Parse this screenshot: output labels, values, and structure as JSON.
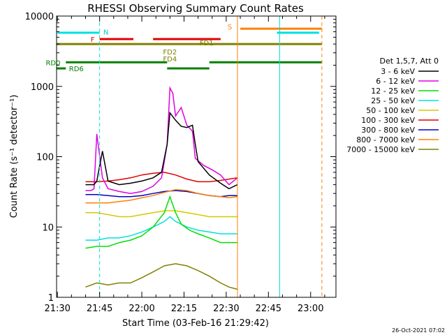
{
  "chart_data": {
    "type": "line",
    "title": "RHESSI Observing Summary Count Rates",
    "xlabel": "Start Time (03-Feb-16 21:29:42)",
    "ylabel": "Count Rate (s⁻¹ detector⁻¹)",
    "y_scale": "log",
    "ylim": [
      1,
      10000
    ],
    "xlim": [
      "21:29:42",
      "23:09:00"
    ],
    "x_ticks": [
      "21:30",
      "21:45",
      "22:00",
      "22:15",
      "22:30",
      "22:45",
      "23:00"
    ],
    "y_ticks": [
      "1",
      "10",
      "100",
      "1000",
      "10000"
    ],
    "footer": "26-Oct-2021 07:02",
    "legend": {
      "title": "Det 1,5,7, Att 0",
      "placement": "right",
      "entries": [
        {
          "label": "3 - 6 keV",
          "color": "#000000"
        },
        {
          "label": "6 - 12 keV",
          "color": "#e000e0"
        },
        {
          "label": "12 - 25 keV",
          "color": "#00e000"
        },
        {
          "label": "25 - 50 keV",
          "color": "#00e0e0"
        },
        {
          "label": "50 - 100 keV",
          "color": "#d8c800"
        },
        {
          "label": "100 - 300 keV",
          "color": "#e00000"
        },
        {
          "label": "300 - 800 keV",
          "color": "#0000c8"
        },
        {
          "label": "800 - 7000 keV",
          "color": "#ff8000"
        },
        {
          "label": "7000 - 15000 keV",
          "color": "#808000"
        }
      ]
    },
    "flag_bars": [
      {
        "label": "N",
        "color": "#00e0e0",
        "label_color": "#00c8c8",
        "y": 5800,
        "segments": [
          [
            "21:30",
            "21:45"
          ],
          [
            "22:48",
            "23:03"
          ]
        ]
      },
      {
        "label": "F",
        "color": "#e00000",
        "label_color": "#e00000",
        "y": 4700,
        "segments": [
          [
            "21:45",
            "21:57"
          ],
          [
            "22:04",
            "22:28"
          ]
        ]
      },
      {
        "label": "S",
        "color": "#ff8000",
        "label_color": "#ff8000",
        "y": 6600,
        "segments": [
          [
            "22:35",
            "23:04"
          ]
        ]
      },
      {
        "label": "FD1",
        "color": "#808000",
        "label_color": "#808000",
        "y": 4000,
        "segments": [
          [
            "21:29:42",
            "23:04"
          ]
        ]
      },
      {
        "label": "FD2",
        "color": "#808000",
        "label_color": "#808000",
        "y": 3100,
        "segments": []
      },
      {
        "label": "FD4",
        "color": "#008000",
        "label_color": "#808000",
        "y": 1800,
        "segments": [
          [
            "22:09",
            "22:24"
          ]
        ]
      },
      {
        "label": "RD0",
        "color": "#008000",
        "label_color": "#008000",
        "y": 2200,
        "segments": [
          [
            "21:33",
            "22:09"
          ],
          [
            "22:24",
            "23:04"
          ]
        ]
      },
      {
        "label": "RD6",
        "color": "#008000",
        "label_color": "#008000",
        "y": 1800,
        "segments": [
          [
            "21:29:42",
            "21:33"
          ]
        ]
      }
    ],
    "vlines": [
      {
        "x": "21:29:42",
        "color": "#00e0e0",
        "style": "solid"
      },
      {
        "x": "21:45",
        "color": "#00e0e0",
        "style": "dashed"
      },
      {
        "x": "22:34",
        "color": "#ff8000",
        "style": "solid"
      },
      {
        "x": "22:49",
        "color": "#00e0e0",
        "style": "solid"
      },
      {
        "x": "23:04",
        "color": "#ff8000",
        "style": "dashed"
      }
    ],
    "series": [
      {
        "name": "3 - 6 keV",
        "color": "#000000",
        "x": [
          "21:40",
          "21:43",
          "21:44",
          "21:46",
          "21:48",
          "21:52",
          "21:56",
          "22:00",
          "22:04",
          "22:07",
          "22:09",
          "22:10",
          "22:12",
          "22:14",
          "22:16",
          "22:18",
          "22:19",
          "22:20",
          "22:24",
          "22:28",
          "22:31",
          "22:34"
        ],
        "y": [
          40,
          40,
          45,
          120,
          45,
          40,
          42,
          45,
          50,
          60,
          150,
          420,
          330,
          270,
          260,
          280,
          150,
          85,
          55,
          42,
          35,
          40
        ]
      },
      {
        "name": "6 - 12 keV",
        "color": "#e000e0",
        "x": [
          "21:40",
          "21:42",
          "21:43",
          "21:44",
          "21:46",
          "21:48",
          "21:52",
          "21:56",
          "22:00",
          "22:04",
          "22:07",
          "22:09",
          "22:10",
          "22:11",
          "22:12",
          "22:14",
          "22:16",
          "22:18",
          "22:19",
          "22:22",
          "22:25",
          "22:28",
          "22:31",
          "22:34"
        ],
        "y": [
          33,
          33,
          35,
          210,
          50,
          35,
          32,
          30,
          32,
          38,
          50,
          150,
          950,
          800,
          380,
          500,
          280,
          230,
          95,
          75,
          65,
          55,
          40,
          50
        ]
      },
      {
        "name": "12 - 25 keV",
        "color": "#00e000",
        "x": [
          "21:40",
          "21:44",
          "21:48",
          "21:52",
          "21:56",
          "22:00",
          "22:04",
          "22:08",
          "22:10",
          "22:12",
          "22:14",
          "22:17",
          "22:20",
          "22:24",
          "22:28",
          "22:31",
          "22:34"
        ],
        "y": [
          5,
          5.3,
          5.3,
          6,
          6.5,
          7.5,
          10,
          16,
          27,
          16,
          11,
          9,
          8,
          7,
          6,
          6,
          6
        ]
      },
      {
        "name": "25 - 50 keV",
        "color": "#00e0e0",
        "x": [
          "21:40",
          "21:44",
          "21:48",
          "21:52",
          "21:56",
          "22:00",
          "22:04",
          "22:08",
          "22:10",
          "22:12",
          "22:14",
          "22:16",
          "22:20",
          "22:24",
          "22:28",
          "22:31",
          "22:34"
        ],
        "y": [
          6.5,
          6.5,
          7,
          7,
          7.5,
          8.5,
          10,
          12,
          14,
          12,
          11,
          10,
          9,
          8.5,
          8,
          8,
          8
        ]
      },
      {
        "name": "50 - 100 keV",
        "color": "#d8c800",
        "x": [
          "21:40",
          "21:44",
          "21:48",
          "21:52",
          "21:56",
          "22:00",
          "22:04",
          "22:08",
          "22:12",
          "22:16",
          "22:20",
          "22:24",
          "22:28",
          "22:31",
          "22:34"
        ],
        "y": [
          16,
          16,
          15,
          14,
          14,
          15,
          16,
          17,
          17,
          16,
          15,
          14,
          14,
          14,
          14
        ]
      },
      {
        "name": "100 - 300 keV",
        "color": "#e00000",
        "x": [
          "21:40",
          "21:44",
          "21:48",
          "21:52",
          "21:56",
          "22:00",
          "22:04",
          "22:08",
          "22:12",
          "22:16",
          "22:20",
          "22:24",
          "22:28",
          "22:31",
          "22:34"
        ],
        "y": [
          44,
          44,
          45,
          47,
          50,
          55,
          58,
          60,
          55,
          48,
          44,
          44,
          46,
          48,
          50
        ]
      },
      {
        "name": "300 - 800 keV",
        "color": "#0000c8",
        "x": [
          "21:40",
          "21:44",
          "21:48",
          "21:52",
          "21:56",
          "22:00",
          "22:04",
          "22:08",
          "22:12",
          "22:16",
          "22:20",
          "22:24",
          "22:28",
          "22:31",
          "22:34"
        ],
        "y": [
          29,
          29,
          28,
          27,
          27,
          28,
          30,
          32,
          33,
          32,
          30,
          28,
          27,
          28,
          28
        ]
      },
      {
        "name": "800 - 7000 keV",
        "color": "#ff8000",
        "x": [
          "21:40",
          "21:44",
          "21:48",
          "21:52",
          "21:56",
          "22:00",
          "22:04",
          "22:08",
          "22:12",
          "22:16",
          "22:20",
          "22:24",
          "22:28",
          "22:31",
          "22:34"
        ],
        "y": [
          22,
          22,
          22,
          23,
          24,
          26,
          28,
          31,
          34,
          33,
          30,
          28,
          27,
          26,
          27
        ]
      },
      {
        "name": "7000 - 15000 keV",
        "color": "#808000",
        "x": [
          "21:40",
          "21:44",
          "21:48",
          "21:52",
          "21:56",
          "22:00",
          "22:04",
          "22:08",
          "22:12",
          "22:16",
          "22:20",
          "22:24",
          "22:28",
          "22:31",
          "22:34"
        ],
        "y": [
          1.4,
          1.6,
          1.5,
          1.6,
          1.6,
          1.9,
          2.3,
          2.8,
          3,
          2.8,
          2.4,
          2,
          1.6,
          1.4,
          1.3
        ]
      }
    ]
  }
}
